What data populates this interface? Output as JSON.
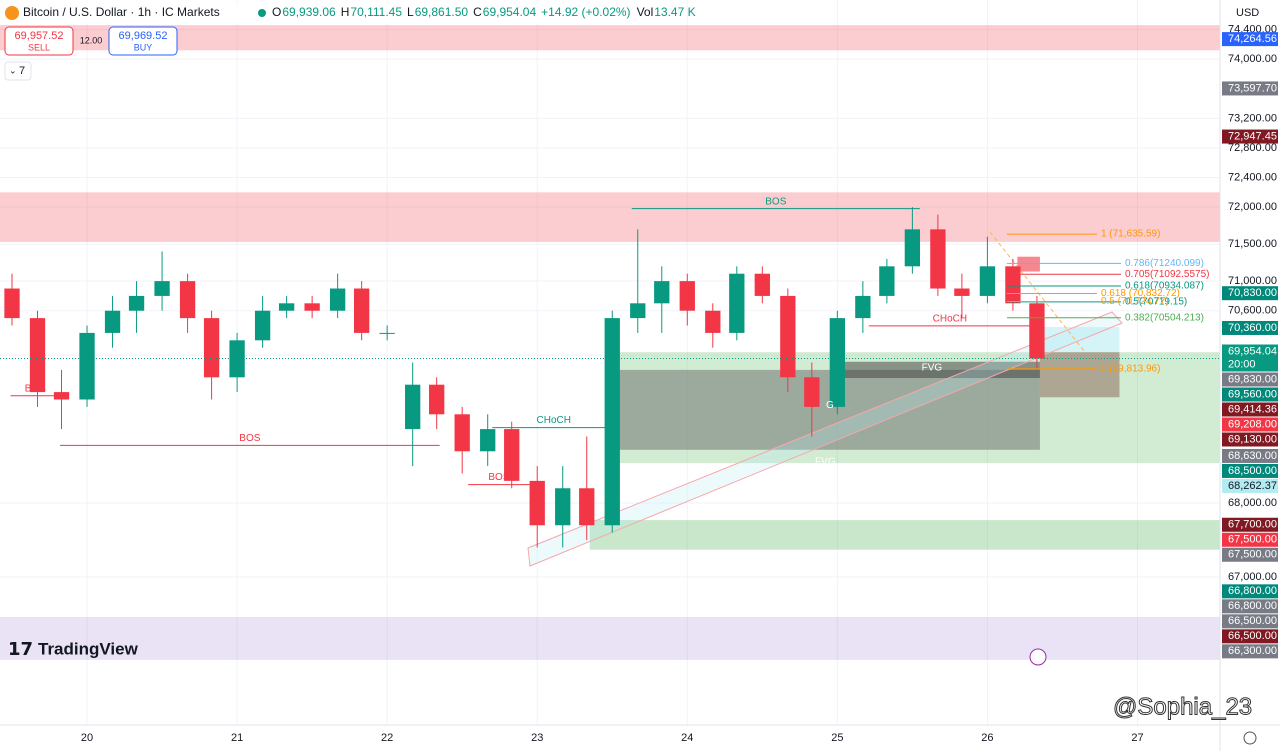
{
  "header": {
    "title": "Bitcoin / U.S. Dollar · 1h · IC Markets",
    "ohlc": [
      {
        "label": "O",
        "value": "69,939.06"
      },
      {
        "label": "H",
        "value": "70,111.45"
      },
      {
        "label": "L",
        "value": "69,861.50"
      },
      {
        "label": "C",
        "value": "69,954.04"
      }
    ],
    "change": "+14.92 (+0.02%)",
    "volume_label": "Vol",
    "volume": "13.47 K",
    "sell_price": "69,957.52",
    "sell": "SELL",
    "spread": "12.00",
    "buy_price": "69,969.52",
    "buy": "BUY",
    "indicators": "7",
    "currency": "USD"
  },
  "logo": "TradingView",
  "watermark": "@Sophia_23",
  "chart_data": {
    "type": "candlestick",
    "xlim": [
      19.42,
      27.55
    ],
    "xticks": [
      20,
      21,
      22,
      23,
      24,
      25,
      26,
      27
    ],
    "ylim": [
      65000,
      74800
    ],
    "yticks": [
      {
        "value": 74400,
        "label": "74,400.00"
      },
      {
        "value": 74000,
        "label": "74,000.00"
      },
      {
        "value": 73200,
        "label": "73,200.00"
      },
      {
        "value": 72800,
        "label": "72,800.00"
      },
      {
        "value": 72400,
        "label": "72,400.00"
      },
      {
        "value": 72000,
        "label": "72,000.00"
      },
      {
        "value": 71500,
        "label": "71,500.00"
      },
      {
        "value": 71000,
        "label": "71,000.00"
      },
      {
        "value": 70600,
        "label": "70,600.00"
      },
      {
        "value": 70000,
        "label": "70,000.00"
      },
      {
        "value": 68000,
        "label": "68,000.00"
      },
      {
        "value": 67000,
        "label": "67,000.00"
      }
    ],
    "grid": true,
    "up_color": "#089981",
    "down_color": "#f23645",
    "candles": {
      "x": [
        19.5,
        19.67,
        19.83,
        20,
        20.17,
        20.33,
        20.5,
        20.67,
        20.83,
        21,
        21.17,
        21.33,
        21.5,
        21.67,
        21.83,
        22,
        22.17,
        22.33,
        22.5,
        22.67,
        22.83,
        23,
        23.17,
        23.33,
        23.5,
        23.67,
        23.83,
        24,
        24.17,
        24.33,
        24.5,
        24.67,
        24.83,
        25,
        25.17,
        25.33,
        25.5,
        25.67,
        25.83,
        26,
        26.17,
        26.33
      ],
      "open": [
        70900,
        70500,
        69500,
        69400,
        70300,
        70600,
        70800,
        71000,
        70500,
        69700,
        70200,
        70600,
        70700,
        70600,
        70900,
        70300,
        69000,
        69600,
        69200,
        68700,
        69000,
        68300,
        67700,
        68200,
        67700,
        70500,
        70700,
        71000,
        70600,
        70300,
        71100,
        70800,
        69700,
        69300,
        70500,
        70800,
        71200,
        71700,
        70900,
        70800,
        71200,
        70700
      ],
      "high": [
        71100,
        70600,
        69800,
        70400,
        70800,
        71000,
        71400,
        71100,
        70600,
        70300,
        70800,
        70800,
        70800,
        71100,
        71000,
        70400,
        69900,
        69700,
        69300,
        69200,
        69100,
        68500,
        68500,
        68900,
        70600,
        71700,
        71200,
        71100,
        70700,
        71200,
        71200,
        70900,
        69900,
        70600,
        71000,
        71300,
        72000,
        71900,
        71100,
        71600,
        71300,
        70800
      ],
      "low": [
        70400,
        69300,
        69000,
        69300,
        70100,
        70300,
        70600,
        70300,
        69400,
        69500,
        70100,
        70500,
        70500,
        70500,
        70200,
        70200,
        68500,
        69000,
        68400,
        68500,
        68200,
        67400,
        67400,
        67500,
        67600,
        70300,
        70300,
        70400,
        70100,
        70200,
        70700,
        69500,
        68900,
        69200,
        70300,
        70700,
        71100,
        70800,
        70500,
        70700,
        70600,
        69800
      ],
      "close": [
        70500,
        69500,
        69400,
        70300,
        70600,
        70800,
        71000,
        70500,
        69700,
        70200,
        70600,
        70700,
        70600,
        70900,
        70300,
        70300,
        69600,
        69200,
        68700,
        69000,
        68300,
        67700,
        68200,
        67700,
        70500,
        70700,
        71000,
        70600,
        70300,
        71100,
        70800,
        69700,
        69300,
        70500,
        70800,
        71200,
        71700,
        70900,
        70800,
        71200,
        70700,
        69954.04
      ]
    },
    "zones": [
      {
        "x": [
          19.42,
          27.55
        ],
        "y": [
          74120,
          74460
        ],
        "color": "rgba(242,54,69,0.25)"
      },
      {
        "x": [
          19.42,
          27.55
        ],
        "y": [
          71530,
          72200
        ],
        "color": "rgba(242,54,69,0.25)"
      },
      {
        "x": [
          23.54,
          27.55
        ],
        "y": [
          68540,
          70040
        ],
        "color": "rgba(76,175,80,0.25)"
      },
      {
        "x": [
          23.54,
          26.35
        ],
        "y": [
          68720,
          69800
        ],
        "color": "rgba(90,90,90,0.45)"
      },
      {
        "x": [
          25.05,
          26.35
        ],
        "y": [
          69690,
          69910
        ],
        "color": "rgba(60,60,60,0.5)"
      },
      {
        "x": [
          23.35,
          27.55
        ],
        "y": [
          67370,
          67770
        ],
        "color": "rgba(76,175,80,0.3)"
      },
      {
        "x": [
          19.42,
          27.55
        ],
        "y": [
          65880,
          66460
        ],
        "color": "rgba(149,117,205,0.2)"
      },
      {
        "x": [
          26.35,
          26.88
        ],
        "y": [
          69430,
          70040
        ],
        "color": "rgba(140,110,95,0.55)"
      },
      {
        "x": [
          26.35,
          26.88
        ],
        "y": [
          70040,
          70380
        ],
        "color": "rgba(178,235,242,0.55)"
      },
      {
        "x": [
          26.2,
          26.35
        ],
        "y": [
          71130,
          71330
        ],
        "color": "rgba(242,54,69,0.6)"
      }
    ],
    "structures": [
      {
        "label": "BOS",
        "price": 71980,
        "x": [
          23.63,
          25.55
        ],
        "color": "#089981"
      },
      {
        "label": "BOS",
        "price": 69450,
        "x": [
          19.49,
          19.82
        ],
        "color": "#f23645"
      },
      {
        "label": "BOS",
        "price": 68780,
        "x": [
          19.82,
          22.35
        ],
        "color": "#f23645"
      },
      {
        "label": "CHoCH",
        "price": 69020,
        "x": [
          22.7,
          23.52
        ],
        "color": "#089981"
      },
      {
        "label": "BOS",
        "price": 68250,
        "x": [
          22.54,
          22.95
        ],
        "color": "#f23645"
      },
      {
        "label": "CHoCH",
        "price": 70395,
        "x": [
          25.21,
          26.29
        ],
        "color": "#f23645"
      }
    ],
    "annotations": [
      {
        "text": "FVG",
        "x": 25.63,
        "price": 69830,
        "color": "#ffffff"
      },
      {
        "text": "FVG",
        "x": 24.92,
        "price": 68560,
        "color": "#ffffff"
      },
      {
        "text": "G",
        "x": 24.95,
        "price": 69320,
        "color": "#ffffff"
      }
    ],
    "fib": [
      {
        "label": "1 (71,635.59)",
        "value": 71635.59,
        "x": [
          26.13,
          26.73
        ],
        "color": "#ff9800"
      },
      {
        "label": "0.786(71240.099)",
        "value": 71240.099,
        "x": [
          26.13,
          26.89
        ],
        "color": "#64b5f6"
      },
      {
        "label": "0.705(71092.5575)",
        "value": 71092.5575,
        "x": [
          26.13,
          26.89
        ],
        "color": "#f23645"
      },
      {
        "label": "0.618(70934.087)",
        "value": 70934.087,
        "x": [
          26.13,
          26.89
        ],
        "color": "#089981"
      },
      {
        "label": "0.618 (70,832.72)",
        "value": 70832.72,
        "x": [
          26.13,
          26.73
        ],
        "color": "#ff9800"
      },
      {
        "label": "0.5(70719.15)",
        "value": 70719.15,
        "x": [
          26.13,
          26.89
        ],
        "color": "#089981"
      },
      {
        "label": "0.5 (70,724.77)",
        "value": 70724.77,
        "x": [
          26.13,
          26.73
        ],
        "color": "#ff9800"
      },
      {
        "label": "0.382(70504.213)",
        "value": 70504.213,
        "x": [
          26.13,
          26.89
        ],
        "color": "#4caf50"
      },
      {
        "label": "0 (69,813.96)",
        "value": 69813.96,
        "x": [
          26.13,
          26.73
        ],
        "color": "#ff9800"
      }
    ],
    "last": {
      "value": 69954.04,
      "label": "69,954.04",
      "time": "20:00",
      "color": "#089981"
    },
    "badges": [
      {
        "value": 74264.56,
        "label": "74,264.56",
        "color": "#2962ff"
      },
      {
        "value": 73597.7,
        "label": "73,597.70",
        "color": "#787b86"
      },
      {
        "value": 72947.45,
        "label": "72,947.45",
        "color": "#801922"
      },
      {
        "value": 70830,
        "label": "70,830.00",
        "color": "#00897b"
      },
      {
        "value": 70360,
        "label": "70,360.00",
        "color": "#00897b"
      },
      {
        "value": 69830,
        "label": "69,830.00",
        "color": "#787b86"
      },
      {
        "value": 69560,
        "label": "69,560.00",
        "color": "#00897b"
      },
      {
        "value": 69414.36,
        "label": "69,414.36",
        "color": "#801922"
      },
      {
        "value": 69208,
        "label": "69,208.00",
        "color": "#f23645"
      },
      {
        "value": 69130,
        "label": "69,130.00",
        "color": "#801922"
      },
      {
        "value": 68630,
        "label": "68,630.00",
        "color": "#787b86"
      },
      {
        "value": 68500,
        "label": "68,500.00",
        "color": "#00897b"
      },
      {
        "value": 68262.37,
        "label": "68,262.37",
        "color": "#b2ebf2",
        "text_color": "#131722"
      },
      {
        "value": 67700,
        "label": "67,700.00",
        "color": "#801922"
      },
      {
        "value": 67500,
        "label": "67,500.00",
        "color": "#f23645"
      },
      {
        "value": 67500,
        "label": "67,500.00",
        "color": "#787b86"
      },
      {
        "value": 66800,
        "label": "66,800.00",
        "color": "#00897b"
      },
      {
        "value": 66800,
        "label": "66,800.00",
        "color": "#787b86"
      },
      {
        "value": 66500,
        "label": "66,500.00",
        "color": "#787b86"
      },
      {
        "value": 66500,
        "label": "66,500.00",
        "color": "#801922"
      },
      {
        "value": 66300,
        "label": "66,300.00",
        "color": "#787b86"
      }
    ]
  }
}
